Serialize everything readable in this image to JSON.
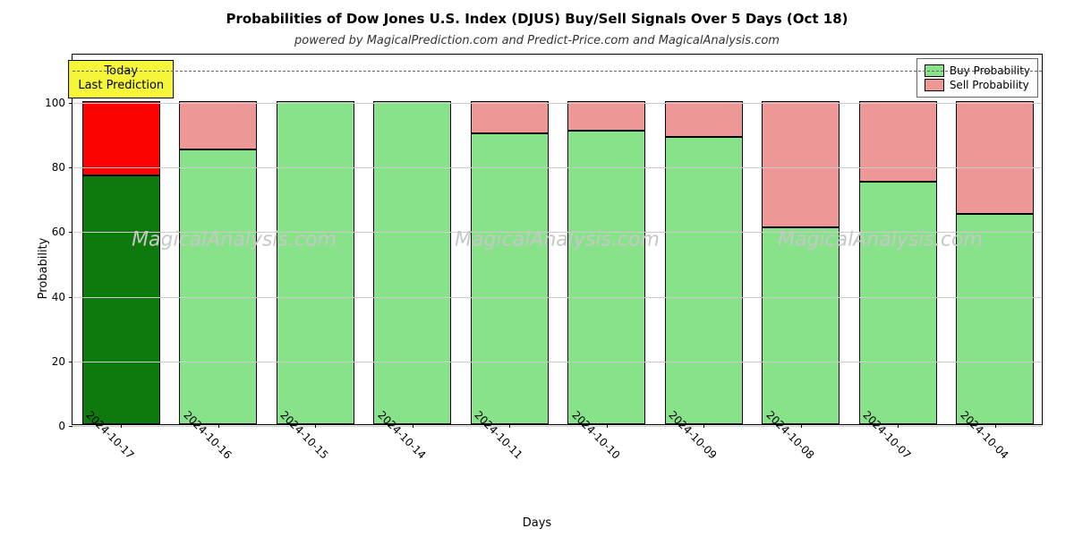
{
  "chart": {
    "type": "bar",
    "title": "Probabilities of Dow Jones U.S. Index (DJUS) Buy/Sell Signals Over 5 Days (Oct 18)",
    "title_fontsize": 15,
    "subtitle": "powered by MagicalPrediction.com and Predict-Price.com and MagicalAnalysis.com",
    "subtitle_fontsize": 13,
    "xlabel": "Days",
    "ylabel": "Probability",
    "axislabel_fontsize": 13,
    "tick_fontsize": 12,
    "ylim": [
      0,
      115
    ],
    "yticks": [
      0,
      20,
      40,
      60,
      80,
      100
    ],
    "grid_color": "#cccccc",
    "dashed": {
      "y": 110,
      "color": "#666666",
      "width": 1.5
    },
    "background_color": "#ffffff",
    "border_color": "#000000",
    "bar_width_pct": 80,
    "legend": {
      "items": [
        {
          "label": "Buy Probability",
          "color": "#88e28a"
        },
        {
          "label": "Sell Probability",
          "color": "#ed9797"
        }
      ],
      "fontsize": 12
    },
    "today_annotation": {
      "line1": "Today",
      "line2": "Last Prediction",
      "bg": "#f5f53a",
      "border": "#000000",
      "fontsize": 13
    },
    "buy_color_default": "#88e28a",
    "sell_color_default": "#ed9797",
    "categories": [
      "2024-10-17",
      "2024-10-16",
      "2024-10-15",
      "2024-10-14",
      "2024-10-11",
      "2024-10-10",
      "2024-10-09",
      "2024-10-08",
      "2024-10-07",
      "2024-10-04"
    ],
    "buy_values": [
      77,
      85,
      100,
      100,
      90,
      91,
      89,
      61,
      75,
      65
    ],
    "sell_values": [
      23,
      15,
      0,
      0,
      10,
      9,
      11,
      39,
      25,
      35
    ],
    "bar_buy_colors": [
      "#0e7a0d",
      "#88e28a",
      "#88e28a",
      "#88e28a",
      "#88e28a",
      "#88e28a",
      "#88e28a",
      "#88e28a",
      "#88e28a",
      "#88e28a"
    ],
    "bar_sell_colors": [
      "#fb0303",
      "#ed9797",
      "#ed9797",
      "#ed9797",
      "#ed9797",
      "#ed9797",
      "#ed9797",
      "#ed9797",
      "#ed9797",
      "#ed9797"
    ]
  },
  "watermark": {
    "text": "MagicalAnalysis.com",
    "color": "#c7c7c7",
    "fontsize": 22,
    "count": 3
  }
}
